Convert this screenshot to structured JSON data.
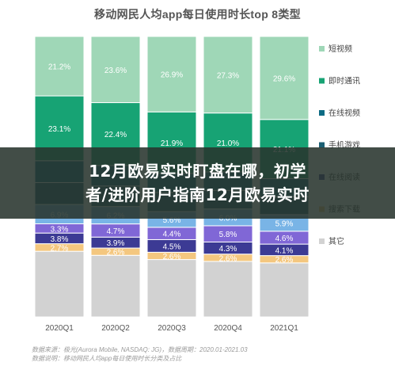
{
  "chart_data": {
    "type": "bar",
    "stacked": true,
    "percent_stacked": true,
    "title": "移动网民人均app每日使用时长top 8类型",
    "categories": [
      "2020Q1",
      "2020Q2",
      "2020Q3",
      "2020Q4",
      "2021Q1"
    ],
    "series": [
      {
        "name": "其它",
        "color": "#d2d2d2",
        "values": [
          null,
          null,
          null,
          null,
          null
        ]
      },
      {
        "name": "搜索下载",
        "color": "#f4c77f",
        "values": [
          2.7,
          2.6,
          2.6,
          2.6,
          2.6
        ]
      },
      {
        "name": "在线阅读",
        "color": "#3c3a94",
        "values": [
          3.8,
          3.9,
          4.5,
          4.3,
          4.1
        ]
      },
      {
        "name": "",
        "color": "#8067d6",
        "values": [
          3.3,
          4.7,
          4.4,
          5.8,
          4.6
        ]
      },
      {
        "name": "",
        "color": "#79b4e6",
        "values": [
          6.9,
          6.2,
          5.6,
          6.0,
          5.9
        ]
      },
      {
        "name": "手机游戏",
        "color": "#1b5f73",
        "values": [
          null,
          null,
          null,
          null,
          null
        ]
      },
      {
        "name": "在线视频",
        "color": "#0d6b84",
        "values": [
          null,
          null,
          null,
          null,
          null
        ]
      },
      {
        "name": "即时通讯",
        "color": "#17a374",
        "values": [
          23.1,
          22.4,
          21.9,
          21.0,
          21.1
        ]
      },
      {
        "name": "短视频",
        "color": "#9fd7b7",
        "values": [
          21.2,
          23.6,
          26.9,
          27.3,
          29.6
        ]
      }
    ],
    "legend_position": "right",
    "grid": false
  },
  "source_text": "数据来源：极光(Aurora Mobile, NASDAQ: JG)，数据周期：2020.01-2021.03",
  "source_text_2": "数据说明：移动网民人均app每日使用时长分类及占比",
  "overlay": {
    "line1": "12月欧易实时盯盘在哪，初学",
    "line2": "者/进阶用户指南12月欧易实时"
  }
}
